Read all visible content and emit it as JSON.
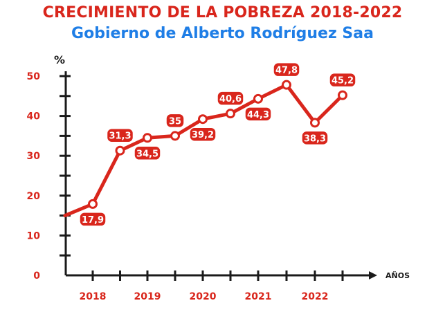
{
  "header": {
    "title": "CRECIMIENTO DE LA POBREZA 2018-2022",
    "subtitle": "Gobierno de Alberto Rodríguez Saa"
  },
  "colors": {
    "title": "#d9261c",
    "subtitle": "#1f7ee6",
    "line": "#d9261c",
    "axis": "#1a1a1a"
  },
  "chart_data": {
    "type": "line",
    "title": "CRECIMIENTO DE LA POBREZA 2018-2022",
    "subtitle": "Gobierno de Alberto Rodríguez Saa",
    "ylabel": "%",
    "xlabel": "AÑOS",
    "ylim": [
      0,
      50
    ],
    "yticks": [
      0,
      10,
      20,
      30,
      40,
      50
    ],
    "xlim": [
      2017.5,
      2023
    ],
    "xticks": [
      "2018",
      "2019",
      "2020",
      "2021",
      "2022"
    ],
    "grid": false,
    "series": [
      {
        "x": [
          2017.5,
          2018,
          2018.5,
          2019,
          2019.5,
          2020,
          2020.5,
          2021,
          2021.5,
          2022,
          2022.5
        ],
        "values": [
          15.0,
          17.9,
          31.3,
          34.5,
          35,
          39.2,
          40.6,
          44.3,
          47.8,
          38.3,
          45.2
        ]
      }
    ],
    "data_labels": [
      {
        "x": 2018,
        "text": "17,9",
        "pos": "below"
      },
      {
        "x": 2018.5,
        "text": "31,3",
        "pos": "above"
      },
      {
        "x": 2019,
        "text": "34,5",
        "pos": "below"
      },
      {
        "x": 2019.5,
        "text": "35",
        "pos": "above"
      },
      {
        "x": 2020,
        "text": "39,2",
        "pos": "below"
      },
      {
        "x": 2020.5,
        "text": "40,6",
        "pos": "above"
      },
      {
        "x": 2021,
        "text": "44,3",
        "pos": "below"
      },
      {
        "x": 2021.5,
        "text": "47,8",
        "pos": "above"
      },
      {
        "x": 2022,
        "text": "38,3",
        "pos": "below"
      },
      {
        "x": 2022.5,
        "text": "45,2",
        "pos": "above"
      }
    ]
  }
}
